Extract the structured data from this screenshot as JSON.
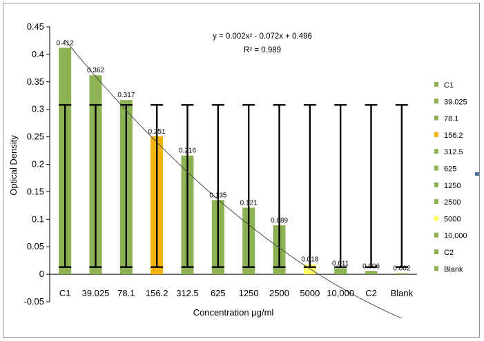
{
  "chart_data": {
    "type": "bar",
    "categories": [
      "C1",
      "39.025",
      "78.1",
      "156.2",
      "312.5",
      "625",
      "1250",
      "2500",
      "5000",
      "10,000",
      "C2",
      "Blank"
    ],
    "values": [
      0.412,
      0.362,
      0.317,
      0.251,
      0.216,
      0.135,
      0.121,
      0.089,
      0.018,
      0.011,
      0.006,
      0.002
    ],
    "data_labels": [
      "0.412",
      "0.362",
      "0.317",
      "0.251",
      "0.216",
      "0.135",
      "0.121",
      "0.089",
      "0.018",
      "0.011",
      "0.006",
      "0.002"
    ],
    "bar_colors": [
      "#8db254",
      "#8db254",
      "#8db254",
      "#f2b40c",
      "#8db254",
      "#8db254",
      "#8db254",
      "#8db254",
      "#ffff66",
      "#8db254",
      "#8db254",
      "#8db254"
    ],
    "legend": [
      "C1",
      "39.025",
      "78.1",
      "156.2",
      "312.5",
      "625",
      "1250",
      "2500",
      "5000",
      "10,000",
      "C2",
      "Blank"
    ],
    "legend_position": "right",
    "error_bars": {
      "low": 0.013,
      "high": 0.308
    },
    "trendline": {
      "type": "polynomial",
      "a": 0.002,
      "b": -0.072,
      "c": 0.496
    },
    "equation": "y = 0.002x² - 0.072x + 0.496",
    "r_squared": "R² = 0.989",
    "title": "",
    "xlabel": "Concentration μg/ml",
    "ylabel": "Optical Density",
    "ylim": [
      -0.05,
      0.45
    ],
    "yticks": [
      "0.45",
      "0.4",
      "0.35",
      "0.3",
      "0.25",
      "0.2",
      "0.15",
      "0.1",
      "0.05",
      "0",
      "-0.05"
    ],
    "grid": false
  }
}
